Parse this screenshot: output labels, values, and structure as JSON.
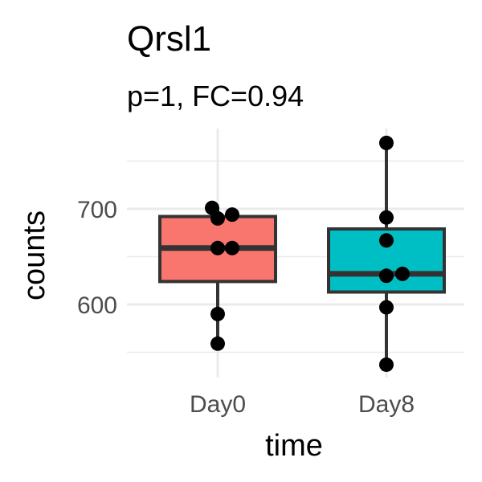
{
  "chart_data": {
    "type": "box",
    "title": "Qrsl1",
    "subtitle": "p=1, FC=0.94",
    "xlabel": "time",
    "ylabel": "counts",
    "categories": [
      "Day0",
      "Day8"
    ],
    "ylim": [
      520,
      780
    ],
    "yticks": [
      600,
      700
    ],
    "grid": true,
    "boxes": [
      {
        "category": "Day0",
        "color": "#F8766D",
        "min": 559,
        "q1": 624,
        "median": 659,
        "q3": 692,
        "max": 701
      },
      {
        "category": "Day8",
        "color": "#00BFC4",
        "min": 537,
        "q1": 613,
        "median": 632,
        "q3": 679,
        "max": 769
      }
    ],
    "points": [
      {
        "category": "Day0",
        "values": [
          701,
          694,
          690,
          659,
          659,
          590,
          559
        ]
      },
      {
        "category": "Day8",
        "values": [
          769,
          691,
          667,
          632,
          630,
          597,
          537
        ]
      }
    ]
  }
}
